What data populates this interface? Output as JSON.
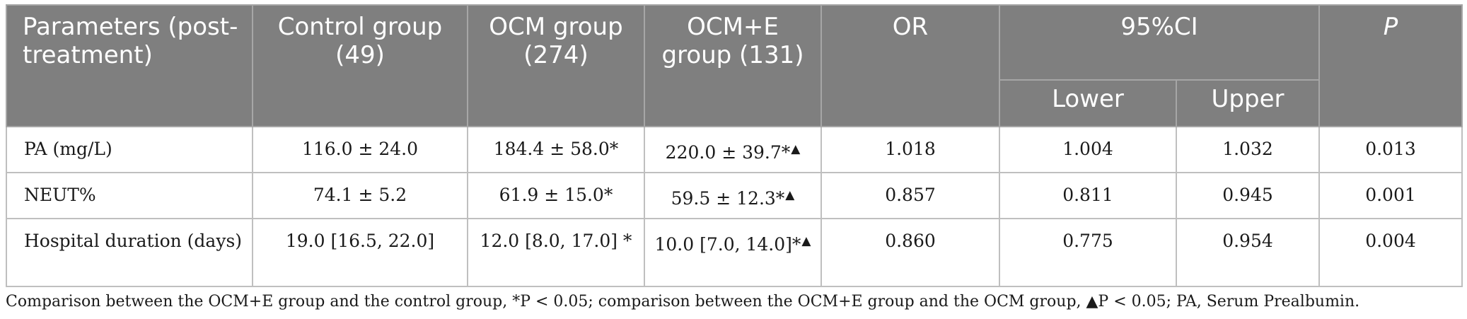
{
  "header": {
    "parameters": "Parameters (post-treatment)",
    "control": "Control group (49)",
    "ocm": "OCM group (274)",
    "ocme": "OCM+E group (131)",
    "or": "OR",
    "ci": "95%CI",
    "lower": "Lower",
    "upper": "Upper",
    "p": "P"
  },
  "rows": [
    {
      "param": "PA (mg/L)",
      "control": "116.0 ± 24.0",
      "ocm": "184.4 ± 58.0*",
      "ocme": "220.0 ± 39.7*",
      "ocme_mark": "▲",
      "or": "1.018",
      "lower": "1.004",
      "upper": "1.032",
      "p": "0.013"
    },
    {
      "param": "NEUT%",
      "control": "74.1 ± 5.2",
      "ocm": "61.9 ± 15.0*",
      "ocme": "59.5 ± 12.3*",
      "ocme_mark": "▲",
      "or": "0.857",
      "lower": "0.811",
      "upper": "0.945",
      "p": "0.001"
    },
    {
      "param": "Hospital duration (days)",
      "control": "19.0 [16.5, 22.0]",
      "ocm": "12.0 [8.0, 17.0] *",
      "ocme": "10.0 [7.0, 14.0]*",
      "ocme_mark": "▲",
      "or": "0.860",
      "lower": "0.775",
      "upper": "0.954",
      "p": "0.004"
    }
  ],
  "footnote": "Comparison between the OCM+E group and the control group, *P < 0.05; comparison between the OCM+E group and the OCM group, ▲P < 0.05; PA, Serum Prealbumin."
}
